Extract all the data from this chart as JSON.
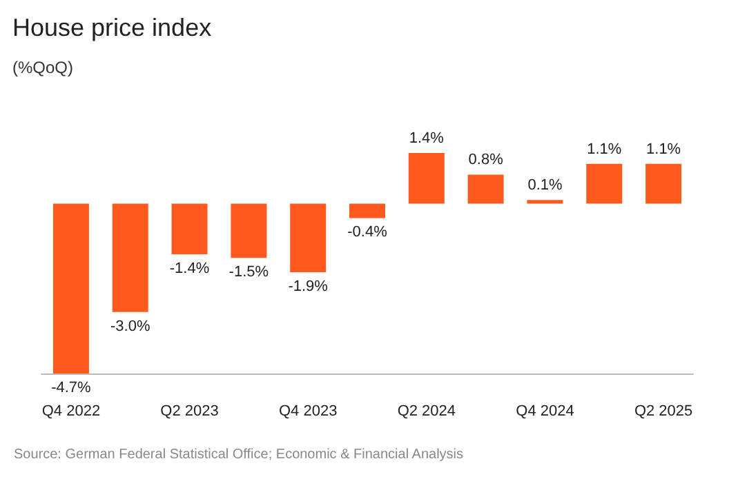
{
  "chart_data": {
    "type": "bar",
    "title": "House price index",
    "subtitle": "(%QoQ)",
    "categories": [
      "Q4 2022",
      null,
      "Q2 2023",
      null,
      "Q4 2023",
      null,
      "Q2 2024",
      null,
      "Q4 2024",
      null,
      "Q2 2025"
    ],
    "values": [
      -4.7,
      -3.0,
      -1.4,
      -1.5,
      -1.9,
      -0.4,
      1.4,
      0.8,
      0.1,
      1.1,
      1.1
    ],
    "value_labels": [
      "-4.7%",
      "-3.0%",
      "-1.4%",
      "-1.5%",
      "-1.9%",
      "-0.4%",
      "1.4%",
      "0.8%",
      "0.1%",
      "1.1%",
      "1.1%"
    ],
    "color": "#ff5a1e",
    "annotations": [
      "Source: German Federal Statistical Office; Economic & Financial Analysis"
    ]
  }
}
